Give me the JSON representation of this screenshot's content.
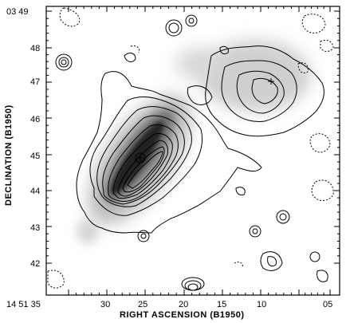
{
  "figure": {
    "xlabel": "RIGHT ASCENSION (B1950)",
    "ylabel": "DECLINATION (B1950)",
    "corner_y_label": "03 49",
    "corner_x_label": "14 51 35",
    "x_ticks": [
      "30",
      "25",
      "20",
      "15",
      "10",
      "05"
    ],
    "y_ticks": [
      "48",
      "47",
      "46",
      "45",
      "44",
      "43",
      "42"
    ]
  }
}
